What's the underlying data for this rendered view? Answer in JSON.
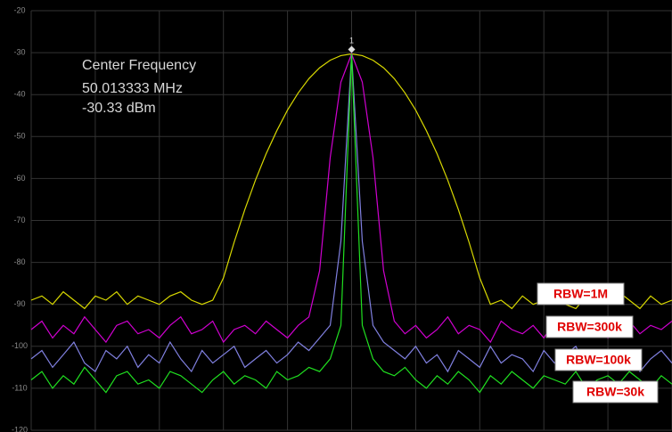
{
  "chart_data": {
    "type": "line",
    "annotations": {
      "heading": "Center Frequency",
      "frequency": "50.013333  MHz",
      "level": "-30.33 dBm",
      "marker": "1"
    },
    "categories": [
      null,
      null,
      null,
      null,
      null,
      null,
      null,
      null,
      null,
      null,
      null,
      null,
      null,
      null,
      null,
      null,
      null,
      null,
      null,
      null,
      null,
      null,
      null,
      null,
      null,
      null,
      null,
      null,
      null,
      null,
      null,
      null,
      null,
      null,
      null,
      null,
      null,
      null,
      null,
      null,
      null,
      null,
      null,
      null,
      null,
      null,
      null,
      null,
      null,
      null,
      null,
      null,
      null,
      null,
      null,
      null,
      null,
      null,
      null,
      null,
      null
    ],
    "ylim": [
      -120,
      -20
    ],
    "yticks": [
      -20,
      -30,
      -40,
      -50,
      -60,
      -70,
      -80,
      -90,
      -100,
      -110,
      -120
    ],
    "grid": true,
    "series": [
      {
        "name": "RBW=1M",
        "color": "#d8d800",
        "values": [
          -89,
          -88,
          -90,
          -87,
          -89,
          -91,
          -88,
          -89,
          -87,
          -90,
          -88,
          -89,
          -90,
          -88,
          -87,
          -89,
          -90,
          -89,
          -83.7,
          -75.2,
          -67.4,
          -60.4,
          -54.1,
          -48.6,
          -43.7,
          -39.6,
          -36.2,
          -33.6,
          -31.8,
          -30.7,
          -30.3,
          -30.7,
          -31.8,
          -33.6,
          -36.2,
          -39.6,
          -43.7,
          -48.6,
          -54.1,
          -60.4,
          -67.4,
          -75.2,
          -83.7,
          -90,
          -89,
          -91,
          -88,
          -90,
          -89,
          -87,
          -90,
          -91,
          -88,
          -89,
          -90,
          -87,
          -89,
          -91,
          -88,
          -90,
          -89
        ]
      },
      {
        "name": "RBW=300k",
        "color": "#d000d0",
        "values": [
          -96,
          -94,
          -98,
          -95,
          -97,
          -93,
          -96,
          -99,
          -95,
          -94,
          -97,
          -96,
          -98,
          -95,
          -93,
          -97,
          -96,
          -94,
          -99,
          -96,
          -95,
          -97,
          -94,
          -96,
          -98,
          -95,
          -93,
          -82,
          -55,
          -37,
          -30.3,
          -37,
          -55,
          -82,
          -94,
          -97,
          -95,
          -98,
          -96,
          -93,
          -97,
          -95,
          -96,
          -99,
          -94,
          -96,
          -97,
          -95,
          -98,
          -94,
          -96,
          -97,
          -93,
          -95,
          -98,
          -96,
          -94,
          -97,
          -95,
          -96,
          -94
        ]
      },
      {
        "name": "RBW=100k",
        "color": "#8080e0",
        "values": [
          -103,
          -101,
          -105,
          -102,
          -99,
          -104,
          -106,
          -101,
          -103,
          -100,
          -105,
          -102,
          -104,
          -99,
          -103,
          -106,
          -101,
          -104,
          -102,
          -100,
          -105,
          -103,
          -101,
          -104,
          -102,
          -99,
          -101,
          -98,
          -95,
          -75,
          -30.3,
          -75,
          -95,
          -99,
          -101,
          -103,
          -100,
          -104,
          -102,
          -106,
          -101,
          -103,
          -105,
          -100,
          -104,
          -102,
          -103,
          -106,
          -101,
          -104,
          -102,
          -100,
          -105,
          -103,
          -101,
          -104,
          -102,
          -106,
          -103,
          -101,
          -104
        ]
      },
      {
        "name": "RBW=30k",
        "color": "#20e020",
        "values": [
          -108,
          -106,
          -110,
          -107,
          -109,
          -105,
          -108,
          -111,
          -107,
          -106,
          -109,
          -108,
          -110,
          -106,
          -107,
          -109,
          -111,
          -108,
          -106,
          -109,
          -107,
          -108,
          -110,
          -106,
          -108,
          -107,
          -105,
          -106,
          -103,
          -95,
          -30.3,
          -95,
          -103,
          -106,
          -107,
          -105,
          -108,
          -110,
          -107,
          -109,
          -106,
          -108,
          -111,
          -107,
          -109,
          -106,
          -108,
          -110,
          -107,
          -108,
          -109,
          -106,
          -110,
          -108,
          -107,
          -109,
          -106,
          -108,
          -110,
          -107,
          -109
        ]
      }
    ]
  }
}
